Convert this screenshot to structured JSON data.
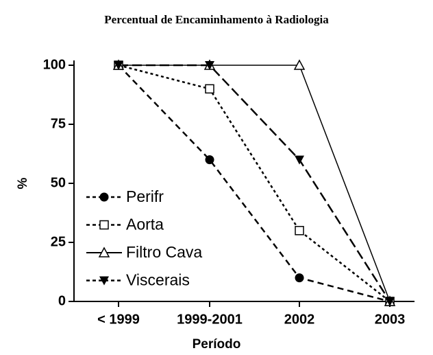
{
  "chart_data": {
    "type": "line",
    "title": "Percentual de Encaminhamento à Radiologia",
    "xlabel": "Período",
    "ylabel": "%",
    "categories": [
      "< 1999",
      "1999-2001",
      "2002",
      "2003"
    ],
    "ylim": [
      0,
      100
    ],
    "yticks": [
      0,
      25,
      50,
      75,
      100
    ],
    "series": [
      {
        "name": "Perifr",
        "color": "#000000",
        "marker": "circle",
        "dash": "9 6",
        "values": [
          100,
          60,
          10,
          0
        ]
      },
      {
        "name": "Aorta",
        "color": "#000000",
        "marker": "square-open",
        "dash": "4 4",
        "values": [
          100,
          90,
          30,
          0
        ]
      },
      {
        "name": "Filtro Cava",
        "color": "#000000",
        "marker": "triangle-open",
        "dash": "none",
        "values": [
          100,
          100,
          100,
          0
        ]
      },
      {
        "name": "Viscerais",
        "color": "#000000",
        "marker": "triangle-down",
        "dash": "14 6",
        "values": [
          100,
          100,
          60,
          0
        ]
      }
    ]
  }
}
